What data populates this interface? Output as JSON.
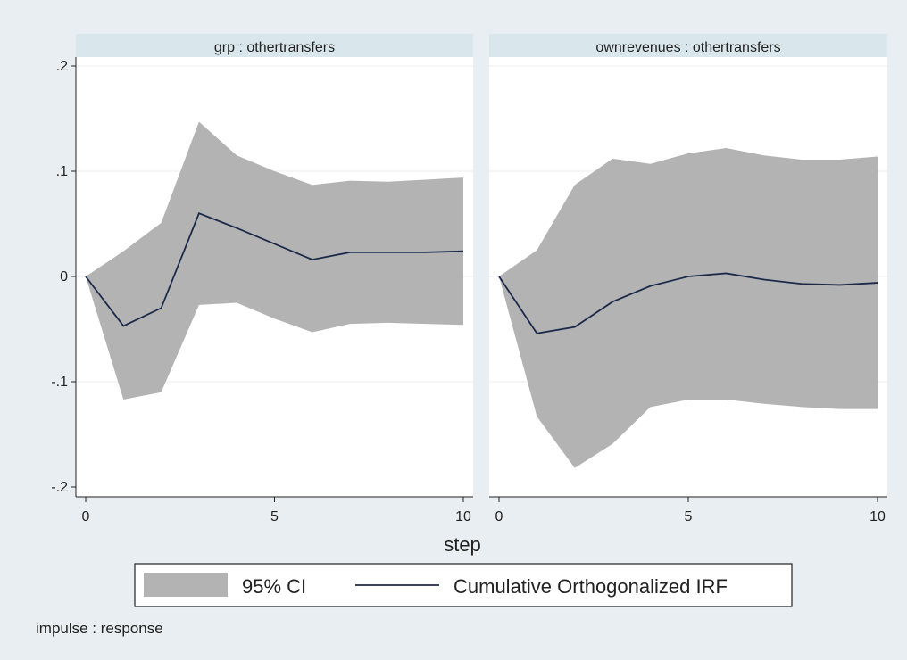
{
  "figure": {
    "note": "impulse : response",
    "background": "#e8eef2",
    "panel_header_color": "#d9e6ec",
    "ci_color": "#b3b3b3",
    "line_color": "#1c2a4a"
  },
  "legend": {
    "ci_label": "95% CI",
    "line_label": "Cumulative Orthogonalized IRF"
  },
  "chart_data": {
    "type": "area",
    "xlabel": "step",
    "ylabel": "",
    "xlim": [
      0,
      10
    ],
    "ylim": [
      -0.2,
      0.2
    ],
    "xticks": [
      0,
      5,
      10
    ],
    "xtick_labels": [
      "0",
      "5",
      "10"
    ],
    "yticks": [
      -0.2,
      -0.1,
      0,
      0.1,
      0.2
    ],
    "ytick_labels": [
      "-.2",
      "-.1",
      "0",
      ".1",
      ".2"
    ],
    "grid": true,
    "legend_position": "bottom",
    "panels": [
      {
        "title": "grp : othertransfers",
        "x": [
          0,
          1,
          2,
          3,
          4,
          5,
          6,
          7,
          8,
          9,
          10
        ],
        "series": [
          {
            "name": "Cumulative Orthogonalized IRF",
            "values": [
              0,
              -0.047,
              -0.03,
              0.06,
              0.046,
              0.031,
              0.016,
              0.023,
              0.023,
              0.023,
              0.024
            ]
          },
          {
            "name": "95% CI lower",
            "values": [
              0,
              -0.117,
              -0.11,
              -0.027,
              -0.025,
              -0.04,
              -0.053,
              -0.045,
              -0.044,
              -0.045,
              -0.046
            ]
          },
          {
            "name": "95% CI upper",
            "values": [
              0,
              0.024,
              0.051,
              0.147,
              0.115,
              0.1,
              0.087,
              0.091,
              0.09,
              0.092,
              0.094
            ]
          }
        ]
      },
      {
        "title": "ownrevenues : othertransfers",
        "x": [
          0,
          1,
          2,
          3,
          4,
          5,
          6,
          7,
          8,
          9,
          10
        ],
        "series": [
          {
            "name": "Cumulative Orthogonalized IRF",
            "values": [
              0,
              -0.054,
              -0.048,
              -0.024,
              -0.009,
              0.0,
              0.003,
              -0.003,
              -0.007,
              -0.008,
              -0.006
            ]
          },
          {
            "name": "95% CI lower",
            "values": [
              0,
              -0.133,
              -0.182,
              -0.159,
              -0.124,
              -0.117,
              -0.117,
              -0.121,
              -0.124,
              -0.126,
              -0.126
            ]
          },
          {
            "name": "95% CI upper",
            "values": [
              0,
              0.025,
              0.087,
              0.112,
              0.107,
              0.117,
              0.122,
              0.115,
              0.111,
              0.111,
              0.114
            ]
          }
        ]
      }
    ]
  }
}
